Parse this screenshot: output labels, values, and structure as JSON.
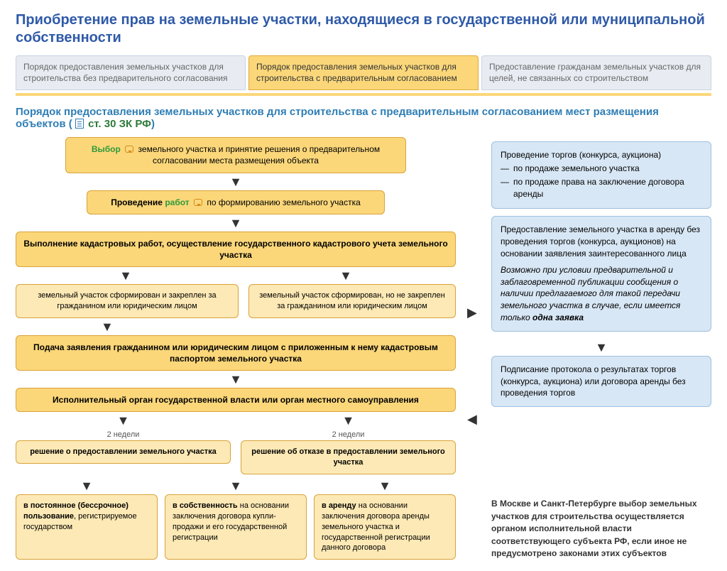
{
  "palette": {
    "title_color": "#2f5aa8",
    "tab_inactive_bg": "#e8ecf2",
    "tab_inactive_border": "#c9d3e2",
    "tab_active_bg": "#fbd77a",
    "tab_active_border": "#e1a836",
    "separator_bg": "#fbd77a",
    "subhead_color": "#2f7eb5",
    "law_color": "#2e7a3a",
    "green_text": "#2e9a3a",
    "node_bg": "#fbd77a",
    "node_border": "#d9a23a",
    "node_light_bg": "#fde9b5",
    "arrow_color": "#333333",
    "blue_box_bg": "#d8e7f5",
    "blue_box_border": "#9ec0e0",
    "note_text": "#333333",
    "doc_icon": "#2f7eb5",
    "bubble_border": "#d48a1a"
  },
  "title": "Приобретение прав на земельные участки, находящиеся в государственной или муниципальной собственности",
  "tabs": [
    {
      "label": "Порядок предоставления земельных участков для строительства без предварительного согласования",
      "active": false
    },
    {
      "label": "Порядок предоставления земельных участков для строительства с предварительным согласованием",
      "active": true
    },
    {
      "label": "Предоставление гражданам земельных участков для целей, не связанных со строительством",
      "active": false
    }
  ],
  "subhead": {
    "text": "Порядок предоставления земельных участков для строительства с предварительным согласованием мест размещения объектов ( ",
    "law": "ст. 30 ЗК РФ",
    "close": ")"
  },
  "flow": {
    "n1_bold": "Выбор",
    "n1_rest": " земельного участка и принятие решения о предварительном согласовании места размещения объекта",
    "n2_a": "Проведение ",
    "n2_b": "работ",
    "n2_c": " по формированию земельного участка",
    "n3": "Выполнение кадастровых работ, осуществление государственного кадастрового учета земельного участка",
    "n4a": "земельный участок сформирован и закреплен за гражданином или юридическим лицом",
    "n4b": "земельный участок сформирован, но не закреплен за гражданином или юридическим лицом",
    "n5": "Подача заявления гражданином или юридическим лицом с приложенным к нему кадастровым паспортом земельного участка",
    "n6": "Исполнительный орган государственной власти или орган местного самоуправления",
    "time": "2 недели",
    "n7a": "решение о предоставлении земельного участка",
    "n7b": "решение об отказе в предоставлении земельного участка",
    "n8a_b": "в постоянное (бессрочное) пользование",
    "n8a_r": ", регистрируемое государством",
    "n8b_b": "в собственность",
    "n8b_r": " на основании заключения договора купли-продажи и его государственной регистрации",
    "n8c_b": "в аренду",
    "n8c_r": " на основании заключения договора аренды земельного участка и государственной регистрации данного договора"
  },
  "right": {
    "r1_head": "Проведение торгов (конкурса, аукциона)",
    "r1_items": [
      "по продаже земельного участка",
      "по продаже права на заключение договора аренды"
    ],
    "r2_p1": "Предоставление земельного участка в аренду без проведения торгов (конкурса, аукционов) на основании заявления заинтересованного лица",
    "r2_p2_a": "Возможно при условии предварительной и заблаговременной публикации сообщения о наличии предлагаемого для такой передачи земельного участка  в случае, если имеется только ",
    "r2_p2_b": "одна заявка",
    "r3": "Подписание протокола о результатах торгов (конкурса, аукциона) или договора аренды без проведения торгов",
    "note": "В Москве и Санкт-Петербурге выбор земельных участков для строительства осуществляется органом исполнительной власти соответствующего субъекта РФ, если иное не предусмотрено законами этих субъектов"
  }
}
